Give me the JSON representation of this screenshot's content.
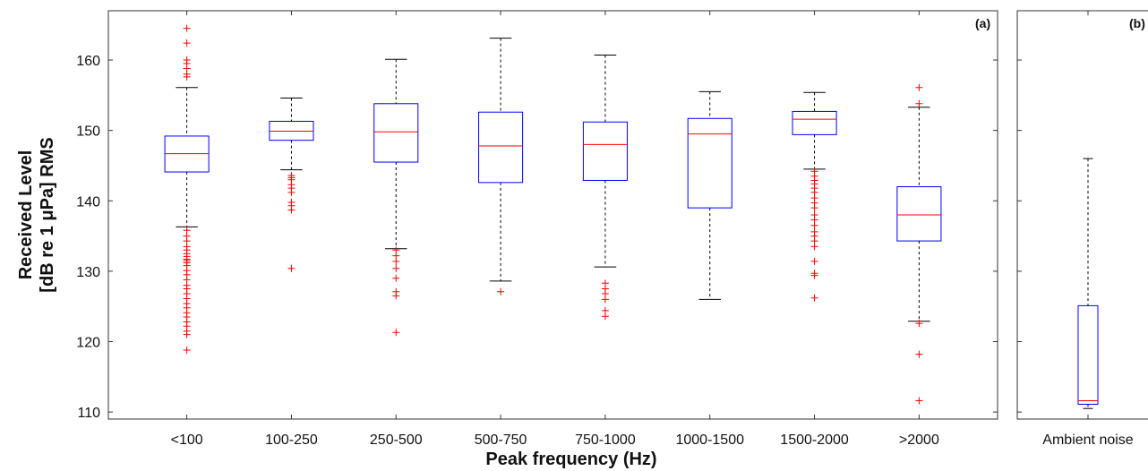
{
  "chart_data": [
    {
      "type": "box",
      "panel_label": "(a)",
      "xlabel": "Peak frequency (Hz)",
      "ylabel_line1": "Received Level",
      "ylabel_line2": "[dB re 1 μPa] RMS",
      "ylim": [
        109,
        167
      ],
      "yticks": [
        110,
        120,
        130,
        140,
        150,
        160
      ],
      "categories": [
        "<100",
        "100-250",
        "250-500",
        "500-750",
        "750-1000",
        "1000-1500",
        "1500-2000",
        ">2000"
      ],
      "boxes": [
        {
          "category": "<100",
          "min": 136.3,
          "q1": 144.1,
          "median": 146.7,
          "q3": 149.2,
          "max": 156.1,
          "outliers": [
            164.5,
            162.4,
            160.0,
            159.5,
            158.8,
            158.0,
            157.6,
            135.8,
            135.0,
            134.3,
            133.5,
            133.0,
            132.5,
            132.1,
            131.7,
            131.5,
            131.2,
            130.8,
            130.1,
            129.5,
            128.8,
            128.0,
            127.5,
            126.8,
            126.1,
            125.4,
            124.8,
            124.1,
            123.5,
            122.8,
            122.2,
            121.5,
            121.0,
            118.8
          ]
        },
        {
          "category": "100-250",
          "min": 144.4,
          "q1": 148.6,
          "median": 149.9,
          "q3": 151.3,
          "max": 154.6,
          "outliers": [
            143.6,
            143.3,
            143.0,
            142.3,
            141.8,
            141.2,
            139.8,
            139.3,
            138.7,
            130.4
          ]
        },
        {
          "category": "250-500",
          "min": 133.2,
          "q1": 145.5,
          "median": 149.8,
          "q3": 153.8,
          "max": 160.1,
          "outliers": [
            133.0,
            132.2,
            131.4,
            130.4,
            129.0,
            127.1,
            126.5,
            121.3
          ]
        },
        {
          "category": "500-750",
          "min": 128.6,
          "q1": 142.6,
          "median": 147.8,
          "q3": 152.6,
          "max": 163.1,
          "outliers": [
            127.1
          ]
        },
        {
          "category": "750-1000",
          "min": 130.6,
          "q1": 142.9,
          "median": 148.0,
          "q3": 151.2,
          "max": 160.7,
          "outliers": [
            128.3,
            127.5,
            126.8,
            126.0,
            124.4,
            123.6
          ]
        },
        {
          "category": "1000-1500",
          "min": 126.0,
          "q1": 139.0,
          "median": 149.5,
          "q3": 151.7,
          "max": 155.5,
          "outliers": []
        },
        {
          "category": "1500-2000",
          "min": 144.5,
          "q1": 149.4,
          "median": 151.6,
          "q3": 152.7,
          "max": 155.4,
          "outliers": [
            144.2,
            143.5,
            142.9,
            142.4,
            141.8,
            141.2,
            140.4,
            139.7,
            139.0,
            138.0,
            137.3,
            136.5,
            135.6,
            135.0,
            134.3,
            133.5,
            131.4,
            129.7,
            129.4,
            126.2
          ]
        },
        {
          "category": ">2000",
          "min": 122.9,
          "q1": 134.3,
          "median": 138.0,
          "q3": 142.0,
          "max": 153.3,
          "outliers": [
            156.1,
            153.8,
            122.6,
            118.2,
            111.6
          ]
        }
      ]
    },
    {
      "type": "box",
      "panel_label": "(b)",
      "ylim": [
        109,
        167
      ],
      "categories": [
        "Ambient noise"
      ],
      "boxes": [
        {
          "category": "Ambient noise",
          "min": 110.5,
          "q1": 111.1,
          "median": 111.6,
          "q3": 125.1,
          "max": 146.0,
          "outliers": []
        }
      ]
    }
  ]
}
